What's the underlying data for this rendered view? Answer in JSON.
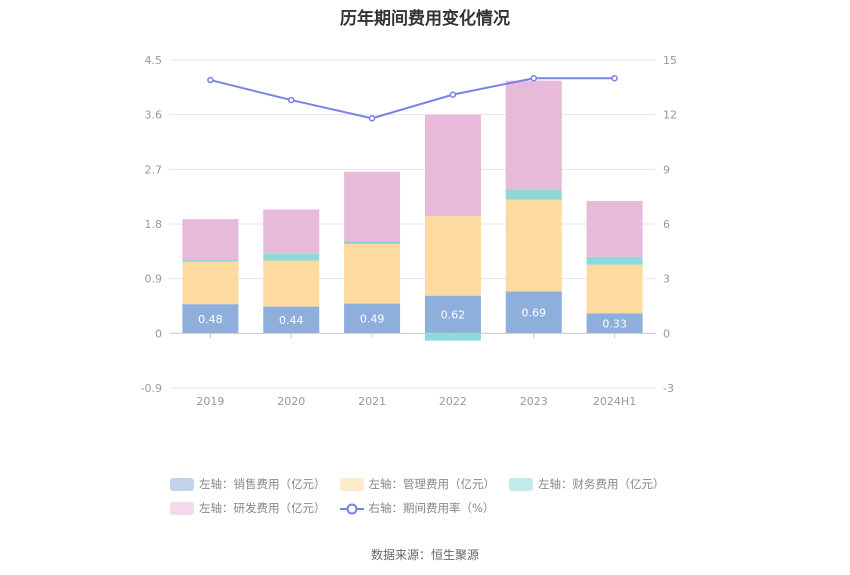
{
  "title": "历年期间费用变化情况",
  "source": "数据来源：恒生聚源",
  "chart_data": {
    "type": "bar",
    "stacked": true,
    "categories": [
      "2019",
      "2020",
      "2021",
      "2022",
      "2023",
      "2024H1"
    ],
    "left_axis": {
      "min": -0.9,
      "max": 4.5,
      "ticks": [
        "4.5",
        "3.6",
        "2.7",
        "1.8",
        "0.9",
        "0",
        "-0.9"
      ]
    },
    "right_axis": {
      "min": -3,
      "max": 15,
      "ticks": [
        "15",
        "12",
        "9",
        "6",
        "3",
        "0",
        "-3"
      ]
    },
    "series": [
      {
        "name": "左轴：销售费用（亿元）",
        "axis": "left",
        "color": "#8eaedb",
        "values": [
          0.48,
          0.44,
          0.49,
          0.62,
          0.69,
          0.33
        ],
        "labels": [
          "0.48",
          "0.44",
          "0.49",
          "0.62",
          "0.69",
          "0.33"
        ]
      },
      {
        "name": "左轴：管理费用（亿元）",
        "axis": "left",
        "color": "#fdda9f",
        "values": [
          0.7,
          0.76,
          0.98,
          1.31,
          1.51,
          0.8
        ]
      },
      {
        "name": "左轴：财务费用（亿元）",
        "axis": "left",
        "color": "#8ed8d8",
        "values": [
          0.04,
          0.11,
          0.05,
          -0.12,
          0.16,
          0.13
        ]
      },
      {
        "name": "左轴：研发费用（亿元）",
        "axis": "left",
        "color": "#e8bada",
        "values": [
          0.66,
          0.73,
          1.14,
          1.67,
          1.8,
          0.92
        ]
      },
      {
        "name": "右轴：期间费用率（%）",
        "axis": "right",
        "type": "line",
        "color": "#7a82e8",
        "values": [
          13.9,
          12.8,
          11.8,
          13.1,
          14.0,
          14.0
        ]
      }
    ],
    "grid": true,
    "legend_position": "bottom"
  }
}
